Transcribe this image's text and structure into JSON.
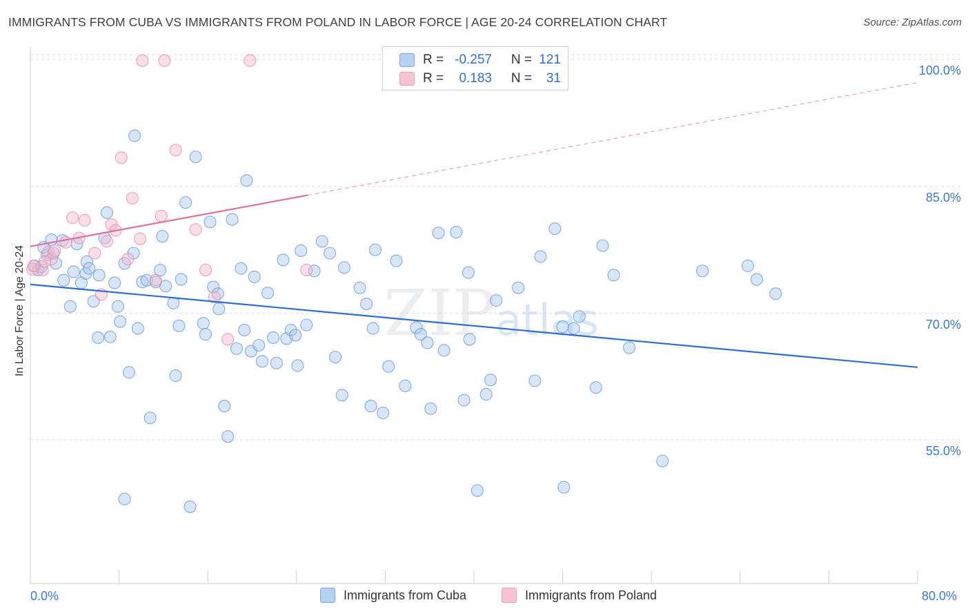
{
  "title": "IMMIGRANTS FROM CUBA VS IMMIGRANTS FROM POLAND IN LABOR FORCE | AGE 20-24 CORRELATION CHART",
  "source": "Source: ZipAtlas.com",
  "watermark": {
    "big": "ZIP",
    "small": "atlas"
  },
  "colors": {
    "cuba_fill": "#a9c8f0",
    "cuba_stroke": "#6f9fdc",
    "cuba_line": "#2a6fcf",
    "poland_fill": "#f6b9cc",
    "poland_stroke": "#e890ab",
    "poland_line": "#e0709a",
    "axis_text": "#3a78d0",
    "grid": "#dddddd"
  },
  "legend": {
    "rows": [
      {
        "r_label": "R =",
        "r_value": "-0.257",
        "n_label": "N =",
        "n_value": "121"
      },
      {
        "r_label": "R =",
        "r_value": "0.183",
        "n_label": "N =",
        "n_value": "31"
      }
    ]
  },
  "bottom_legend": [
    "Immigrants from Cuba",
    "Immigrants from Poland"
  ],
  "chart_data": {
    "type": "scatter",
    "title": "IMMIGRANTS FROM CUBA VS IMMIGRANTS FROM POLAND IN LABOR FORCE | AGE 20-24 CORRELATION CHART",
    "xlabel": "",
    "ylabel": "In Labor Force | Age 20-24",
    "xlim": [
      0,
      80
    ],
    "ylim": [
      38,
      102
    ],
    "x_tick_labels": [
      "0.0%",
      "80.0%"
    ],
    "y_ticks": [
      55,
      70,
      85,
      100
    ],
    "y_tick_labels": [
      "55.0%",
      "70.0%",
      "85.0%",
      "100.0%"
    ],
    "grid": true,
    "series": [
      {
        "name": "Immigrants from Cuba",
        "r": -0.257,
        "n": 121,
        "trend": {
          "x": [
            0,
            80
          ],
          "y": [
            73.4,
            63.6
          ]
        },
        "points": [
          [
            0.4,
            75.6
          ],
          [
            0.7,
            75.1
          ],
          [
            1.0,
            75.5
          ],
          [
            1.2,
            77.8
          ],
          [
            1.5,
            76.9
          ],
          [
            1.9,
            78.7
          ],
          [
            2.1,
            77.1
          ],
          [
            2.3,
            75.9
          ],
          [
            2.9,
            78.6
          ],
          [
            3.0,
            73.9
          ],
          [
            3.6,
            70.8
          ],
          [
            3.9,
            74.9
          ],
          [
            4.2,
            78.2
          ],
          [
            4.6,
            73.6
          ],
          [
            5.0,
            74.7
          ],
          [
            5.1,
            76.1
          ],
          [
            5.3,
            75.3
          ],
          [
            5.7,
            71.4
          ],
          [
            6.1,
            67.1
          ],
          [
            6.2,
            74.5
          ],
          [
            6.7,
            78.9
          ],
          [
            6.9,
            81.9
          ],
          [
            7.2,
            67.2
          ],
          [
            7.6,
            73.6
          ],
          [
            7.9,
            70.8
          ],
          [
            8.1,
            69.0
          ],
          [
            8.5,
            75.9
          ],
          [
            8.9,
            63.0
          ],
          [
            9.3,
            77.1
          ],
          [
            9.7,
            68.2
          ],
          [
            10.1,
            73.7
          ],
          [
            10.5,
            73.9
          ],
          [
            10.8,
            57.6
          ],
          [
            11.3,
            73.7
          ],
          [
            11.7,
            75.1
          ],
          [
            11.9,
            79.1
          ],
          [
            12.2,
            73.2
          ],
          [
            12.9,
            71.2
          ],
          [
            13.1,
            62.6
          ],
          [
            13.4,
            68.5
          ],
          [
            13.6,
            74.0
          ],
          [
            14.0,
            83.1
          ],
          [
            14.9,
            88.5
          ],
          [
            15.6,
            68.8
          ],
          [
            15.8,
            67.5
          ],
          [
            16.2,
            80.8
          ],
          [
            16.5,
            73.1
          ],
          [
            16.9,
            72.3
          ],
          [
            17.0,
            70.5
          ],
          [
            17.5,
            59.0
          ],
          [
            17.8,
            55.4
          ],
          [
            18.2,
            81.1
          ],
          [
            18.6,
            65.8
          ],
          [
            19.0,
            75.3
          ],
          [
            19.3,
            68.0
          ],
          [
            19.5,
            85.7
          ],
          [
            19.9,
            65.5
          ],
          [
            20.2,
            74.3
          ],
          [
            20.6,
            66.2
          ],
          [
            20.9,
            64.3
          ],
          [
            21.4,
            72.4
          ],
          [
            21.9,
            67.1
          ],
          [
            22.2,
            64.1
          ],
          [
            22.8,
            76.3
          ],
          [
            23.1,
            67.0
          ],
          [
            23.5,
            68.0
          ],
          [
            23.9,
            67.4
          ],
          [
            24.1,
            63.8
          ],
          [
            24.4,
            77.4
          ],
          [
            24.9,
            68.6
          ],
          [
            25.6,
            75.0
          ],
          [
            26.3,
            78.5
          ],
          [
            27.0,
            77.1
          ],
          [
            27.5,
            64.8
          ],
          [
            28.1,
            60.3
          ],
          [
            28.3,
            75.4
          ],
          [
            29.7,
            73.0
          ],
          [
            30.3,
            71.1
          ],
          [
            30.7,
            59.0
          ],
          [
            30.9,
            68.2
          ],
          [
            31.1,
            77.5
          ],
          [
            31.8,
            58.2
          ],
          [
            32.3,
            63.7
          ],
          [
            33.0,
            76.2
          ],
          [
            33.8,
            61.4
          ],
          [
            34.8,
            68.3
          ],
          [
            35.2,
            67.5
          ],
          [
            35.8,
            66.5
          ],
          [
            36.1,
            58.7
          ],
          [
            36.8,
            79.5
          ],
          [
            37.3,
            65.6
          ],
          [
            38.4,
            79.6
          ],
          [
            39.1,
            59.7
          ],
          [
            39.5,
            74.8
          ],
          [
            39.6,
            66.9
          ],
          [
            40.3,
            49.0
          ],
          [
            41.1,
            60.4
          ],
          [
            41.5,
            62.1
          ],
          [
            42.0,
            71.5
          ],
          [
            44.0,
            73.0
          ],
          [
            45.5,
            62.0
          ],
          [
            46.0,
            76.7
          ],
          [
            47.3,
            80.0
          ],
          [
            48.0,
            68.4
          ],
          [
            48.1,
            49.4
          ],
          [
            49.0,
            68.2
          ],
          [
            49.5,
            69.6
          ],
          [
            51.0,
            61.2
          ],
          [
            51.6,
            78.0
          ],
          [
            52.6,
            74.5
          ],
          [
            54.0,
            65.9
          ],
          [
            57.0,
            52.5
          ],
          [
            60.6,
            75.0
          ],
          [
            64.7,
            75.6
          ],
          [
            65.5,
            74.0
          ],
          [
            67.2,
            72.3
          ],
          [
            8.5,
            48.0
          ],
          [
            14.4,
            47.1
          ],
          [
            9.4,
            91.0
          ]
        ]
      },
      {
        "name": "Immigrants from Poland",
        "r": 0.183,
        "n": 31,
        "trend": {
          "x": [
            0,
            80
          ],
          "y": [
            77.9,
            97.3
          ]
        },
        "points": [
          [
            0.2,
            75.2
          ],
          [
            1.1,
            75.1
          ],
          [
            1.6,
            77.2
          ],
          [
            1.9,
            76.4
          ],
          [
            2.2,
            77.4
          ],
          [
            3.2,
            78.4
          ],
          [
            3.8,
            81.3
          ],
          [
            4.4,
            78.9
          ],
          [
            4.9,
            81.0
          ],
          [
            5.8,
            77.1
          ],
          [
            6.4,
            72.2
          ],
          [
            6.9,
            78.5
          ],
          [
            7.3,
            80.5
          ],
          [
            7.7,
            79.8
          ],
          [
            8.2,
            88.4
          ],
          [
            8.8,
            76.4
          ],
          [
            9.2,
            83.6
          ],
          [
            9.9,
            78.8
          ],
          [
            10.1,
            99.9
          ],
          [
            11.3,
            73.9
          ],
          [
            11.8,
            81.5
          ],
          [
            12.1,
            99.9
          ],
          [
            13.1,
            89.3
          ],
          [
            14.9,
            79.9
          ],
          [
            15.8,
            75.1
          ],
          [
            16.6,
            71.9
          ],
          [
            17.8,
            66.9
          ],
          [
            19.8,
            99.9
          ],
          [
            24.9,
            75.1
          ],
          [
            0.3,
            75.6
          ],
          [
            1.3,
            76.1
          ]
        ]
      }
    ]
  }
}
